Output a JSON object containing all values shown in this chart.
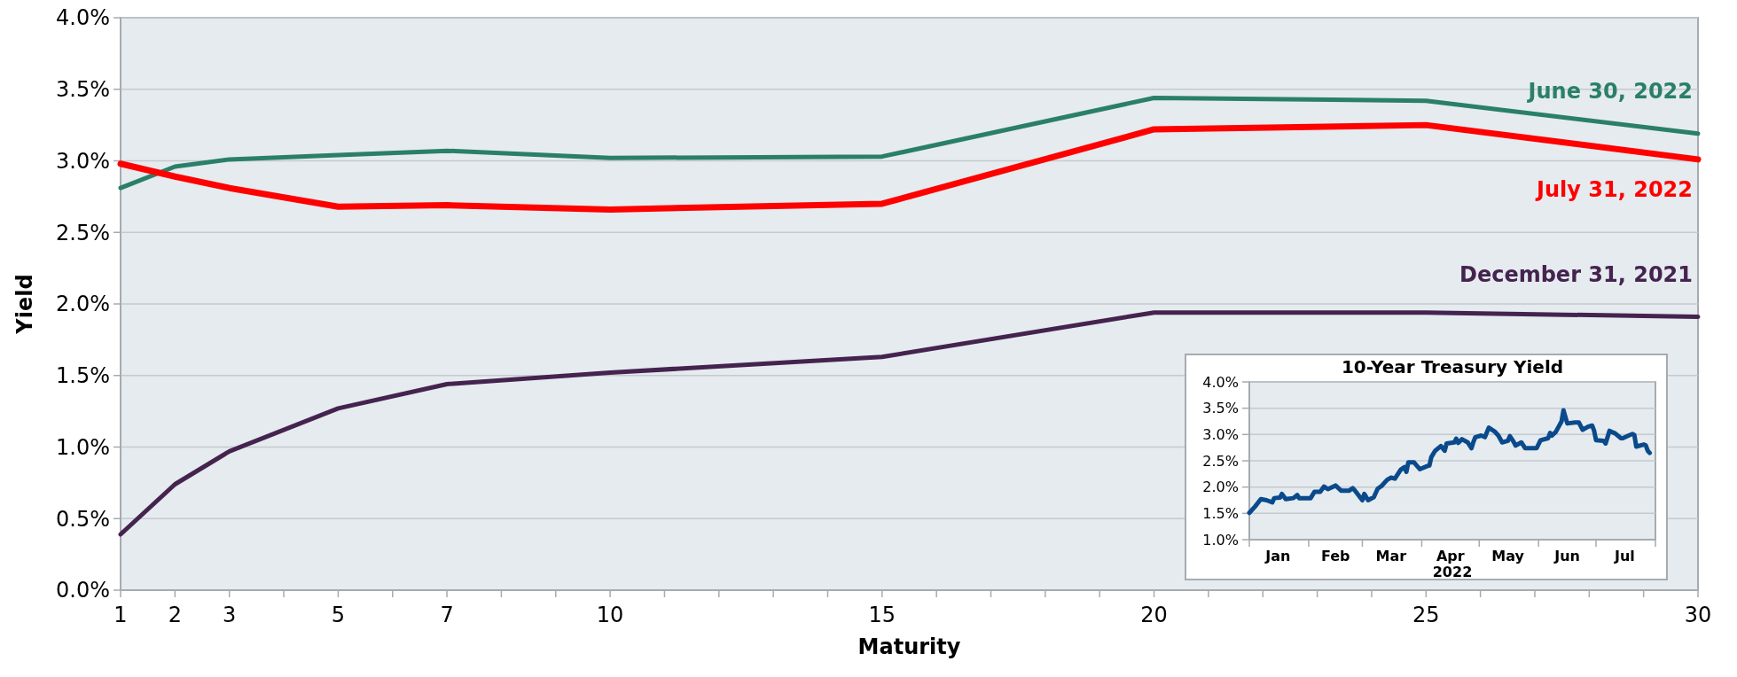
{
  "chart_data": [
    {
      "type": "line",
      "xlabel": "Maturity",
      "ylabel": "Yield",
      "x": [
        1,
        2,
        3,
        5,
        7,
        10,
        15,
        20,
        25,
        30
      ],
      "series": [
        {
          "name": "June 30, 2022",
          "color": "#2a7f6a",
          "values": [
            2.81,
            2.96,
            3.01,
            3.04,
            3.07,
            3.02,
            3.03,
            3.44,
            3.42,
            3.19
          ]
        },
        {
          "name": "July 31, 2022",
          "color": "#ff0000",
          "values": [
            2.98,
            2.89,
            2.81,
            2.68,
            2.69,
            2.66,
            2.7,
            3.22,
            3.25,
            3.01
          ]
        },
        {
          "name": "December 31, 2021",
          "color": "#45234f",
          "values": [
            0.39,
            0.74,
            0.97,
            1.27,
            1.44,
            1.52,
            1.63,
            1.94,
            1.94,
            1.91
          ]
        }
      ],
      "xlim": [
        1,
        30
      ],
      "xticks": [
        1,
        2,
        3,
        {
          "value": 4,
          "label": null
        },
        5,
        {
          "value": 6,
          "label": null
        },
        7,
        {
          "value": 8,
          "label": null
        },
        {
          "value": 9,
          "label": null
        },
        10,
        {
          "value": 11,
          "label": null
        },
        {
          "value": 12,
          "label": null
        },
        {
          "value": 13,
          "label": null
        },
        {
          "value": 14,
          "label": null
        },
        15,
        {
          "value": 16,
          "label": null
        },
        {
          "value": 17,
          "label": null
        },
        {
          "value": 18,
          "label": null
        },
        {
          "value": 19,
          "label": null
        },
        20,
        {
          "value": 21,
          "label": null
        },
        {
          "value": 22,
          "label": null
        },
        {
          "value": 23,
          "label": null
        },
        {
          "value": 24,
          "label": null
        },
        25,
        {
          "value": 26,
          "label": null
        },
        {
          "value": 27,
          "label": null
        },
        {
          "value": 28,
          "label": null
        },
        {
          "value": 29,
          "label": null
        },
        30
      ],
      "ylim": [
        0,
        4
      ],
      "yticks": [
        {
          "value": 0,
          "label": "0.0%"
        },
        {
          "value": 0.5,
          "label": "0.5%"
        },
        {
          "value": 1,
          "label": "1.0%"
        },
        {
          "value": 1.5,
          "label": "1.5%"
        },
        {
          "value": 2,
          "label": "2.0%"
        },
        {
          "value": 2.5,
          "label": "2.5%"
        },
        {
          "value": 3,
          "label": "3.0%"
        },
        {
          "value": 3.5,
          "label": "3.5%"
        },
        {
          "value": 4,
          "label": "4.0%"
        }
      ],
      "grid": "y"
    },
    {
      "type": "line",
      "title": "10-Year Treasury Yield",
      "xlabel": "2022",
      "x": [
        "2022-01-01",
        "2022-01-04",
        "2022-01-07",
        "2022-01-10",
        "2022-01-13",
        "2022-01-14",
        "2022-01-17",
        "2022-01-18",
        "2022-01-20",
        "2022-01-24",
        "2022-01-26",
        "2022-01-27",
        "2022-02-02",
        "2022-02-04",
        "2022-02-07",
        "2022-02-09",
        "2022-02-11",
        "2022-02-15",
        "2022-02-18",
        "2022-02-22",
        "2022-02-24",
        "2022-02-25",
        "2022-03-01",
        "2022-03-02",
        "2022-03-04",
        "2022-03-07",
        "2022-03-09",
        "2022-03-11",
        "2022-03-14",
        "2022-03-16",
        "2022-03-18",
        "2022-03-21",
        "2022-03-23",
        "2022-03-24",
        "2022-03-25",
        "2022-03-28",
        "2022-03-31",
        "2022-04-04",
        "2022-04-05",
        "2022-04-06",
        "2022-04-08",
        "2022-04-11",
        "2022-04-13",
        "2022-04-14",
        "2022-04-18",
        "2022-04-19",
        "2022-04-20",
        "2022-04-22",
        "2022-04-25",
        "2022-04-27",
        "2022-04-28",
        "2022-04-29",
        "2022-05-02",
        "2022-05-04",
        "2022-05-06",
        "2022-05-09",
        "2022-05-11",
        "2022-05-13",
        "2022-05-16",
        "2022-05-17",
        "2022-05-19",
        "2022-05-20",
        "2022-05-23",
        "2022-05-25",
        "2022-05-31",
        "2022-06-02",
        "2022-06-06",
        "2022-06-07",
        "2022-06-08",
        "2022-06-10",
        "2022-06-13",
        "2022-06-14",
        "2022-06-16",
        "2022-06-20",
        "2022-06-22",
        "2022-06-24",
        "2022-06-27",
        "2022-06-29",
        "2022-06-30",
        "2022-07-01",
        "2022-07-05",
        "2022-07-06",
        "2022-07-08",
        "2022-07-11",
        "2022-07-14",
        "2022-07-15",
        "2022-07-18",
        "2022-07-20",
        "2022-07-21",
        "2022-07-22",
        "2022-07-26",
        "2022-07-27",
        "2022-07-28",
        "2022-07-29"
      ],
      "series": [
        {
          "color": "#0a4a8c",
          "values": [
            1.51,
            1.63,
            1.77,
            1.75,
            1.71,
            1.79,
            1.8,
            1.87,
            1.77,
            1.79,
            1.85,
            1.79,
            1.79,
            1.91,
            1.91,
            2.01,
            1.96,
            2.03,
            1.93,
            1.93,
            1.98,
            1.94,
            1.75,
            1.87,
            1.75,
            1.81,
            1.97,
            2.02,
            2.14,
            2.18,
            2.16,
            2.33,
            2.38,
            2.29,
            2.47,
            2.47,
            2.34,
            2.4,
            2.41,
            2.57,
            2.69,
            2.78,
            2.69,
            2.83,
            2.85,
            2.92,
            2.84,
            2.91,
            2.85,
            2.74,
            2.86,
            2.95,
            2.98,
            2.95,
            3.13,
            3.06,
            2.98,
            2.85,
            2.88,
            2.97,
            2.86,
            2.79,
            2.85,
            2.74,
            2.74,
            2.89,
            2.93,
            3.03,
            2.98,
            3.05,
            3.25,
            3.46,
            3.21,
            3.23,
            3.23,
            3.09,
            3.15,
            3.17,
            3.07,
            2.89,
            2.88,
            2.83,
            3.07,
            3.02,
            2.93,
            2.93,
            2.98,
            3.01,
            2.99,
            2.77,
            2.81,
            2.79,
            2.69,
            2.65
          ]
        }
      ],
      "xlim": [
        "2022-01-01",
        "2022-08-01"
      ],
      "xticks": [
        {
          "value": "2022-01-01",
          "label": null
        },
        {
          "value": "2022-01-16",
          "label": "Jan"
        },
        {
          "value": "2022-02-01",
          "label": null
        },
        {
          "value": "2022-02-15",
          "label": "Feb"
        },
        {
          "value": "2022-03-01",
          "label": null
        },
        {
          "value": "2022-03-16",
          "label": "Mar"
        },
        {
          "value": "2022-04-01",
          "label": null
        },
        {
          "value": "2022-04-16",
          "label": "Apr"
        },
        {
          "value": "2022-05-01",
          "label": null
        },
        {
          "value": "2022-05-16",
          "label": "May"
        },
        {
          "value": "2022-06-01",
          "label": null
        },
        {
          "value": "2022-06-16",
          "label": "Jun"
        },
        {
          "value": "2022-07-01",
          "label": null
        },
        {
          "value": "2022-07-16",
          "label": "Jul"
        },
        {
          "value": "2022-08-01",
          "label": null
        }
      ],
      "ylim": [
        1,
        4
      ],
      "yticks": [
        {
          "value": 1,
          "label": "1.0%"
        },
        {
          "value": 1.5,
          "label": "1.5%"
        },
        {
          "value": 2,
          "label": "2.0%"
        },
        {
          "value": 2.5,
          "label": "2.5%"
        },
        {
          "value": 3,
          "label": "3.0%"
        },
        {
          "value": 3.5,
          "label": "3.5%"
        },
        {
          "value": 4,
          "label": "4.0%"
        }
      ],
      "grid": "y"
    }
  ]
}
